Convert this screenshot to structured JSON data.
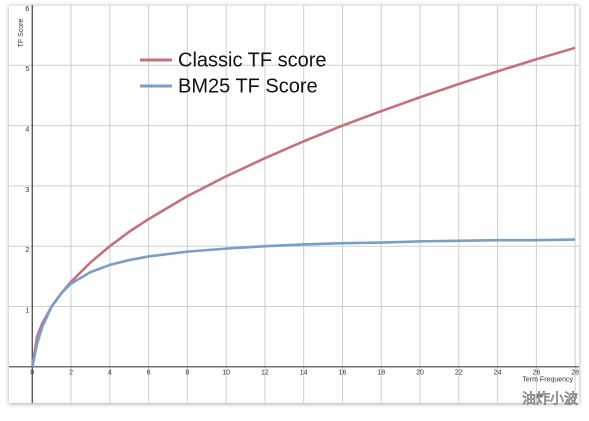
{
  "chart_data": {
    "type": "line",
    "y_label": "TF Score",
    "x_label": "Term Frequency",
    "x": [
      0,
      0.25,
      0.5,
      1,
      1.5,
      2,
      3,
      4,
      5,
      6,
      8,
      10,
      12,
      14,
      16,
      18,
      20,
      22,
      24,
      26,
      28
    ],
    "series": [
      {
        "name": "Classic TF score",
        "color": "#c4727c",
        "values": [
          0,
          0.5,
          0.71,
          1,
          1.22,
          1.41,
          1.73,
          2,
          2.24,
          2.45,
          2.83,
          3.16,
          3.46,
          3.74,
          4,
          4.24,
          4.47,
          4.69,
          4.9,
          5.1,
          5.29
        ]
      },
      {
        "name": "BM25 TF Score",
        "color": "#7b9dc8",
        "values": [
          0,
          0.38,
          0.65,
          1,
          1.22,
          1.38,
          1.57,
          1.69,
          1.77,
          1.83,
          1.91,
          1.96,
          2,
          2.03,
          2.05,
          2.06,
          2.08,
          2.09,
          2.1,
          2.1,
          2.11
        ]
      }
    ],
    "xlim": [
      -1.2,
      28.2
    ],
    "ylim": [
      -0.6,
      6
    ],
    "xticks": [
      0,
      2,
      4,
      6,
      8,
      10,
      12,
      14,
      16,
      18,
      20,
      22,
      24,
      26,
      28
    ],
    "yticks": [
      1,
      2,
      3,
      4,
      5,
      6
    ],
    "grid": true,
    "watermark": "油炸小波"
  }
}
